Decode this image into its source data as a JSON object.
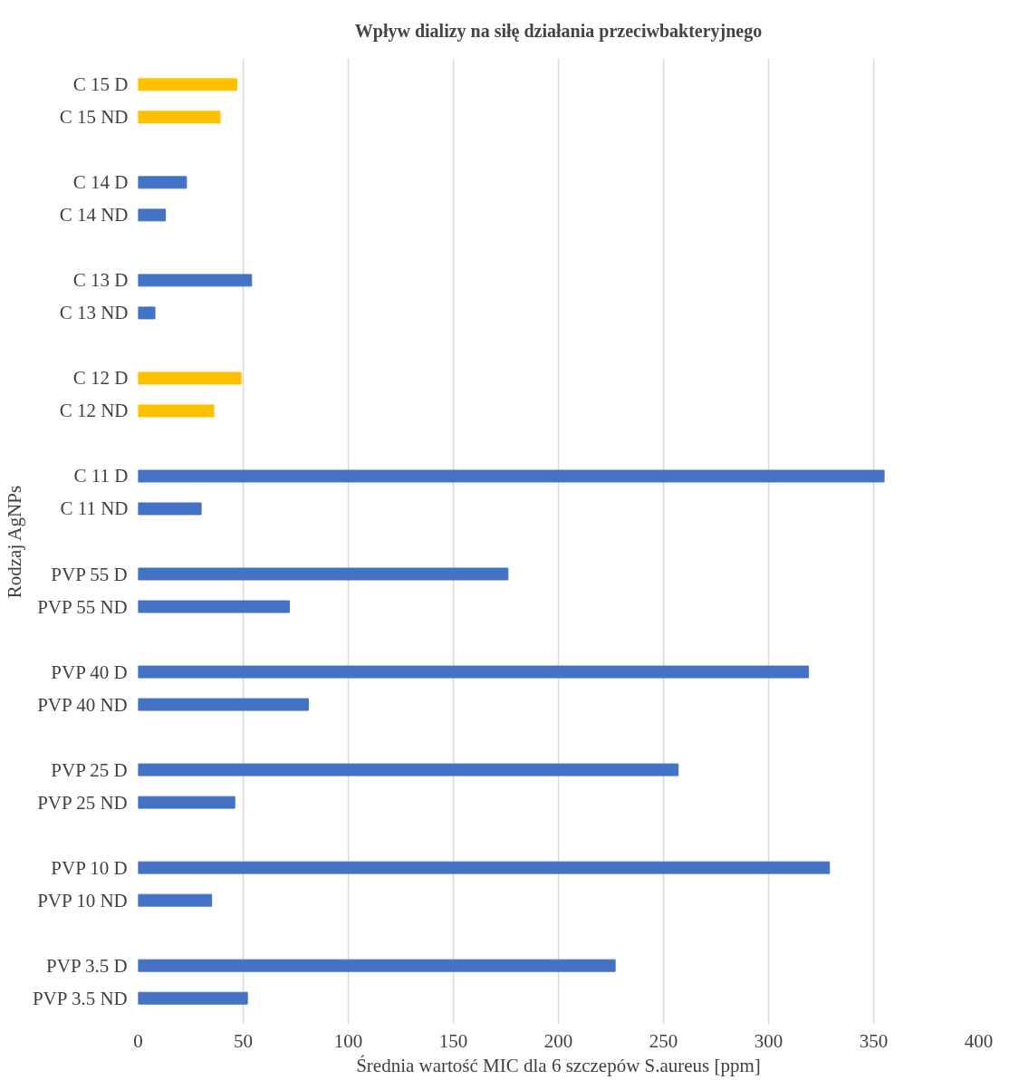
{
  "chart_data": {
    "type": "bar",
    "orientation": "horizontal",
    "title": "Wpływ dializy na siłę działania przeciwbakteryjnego",
    "xlabel": "Średnia wartość MIC dla 6 szczepów S.aureus [ppm]",
    "ylabel": "Rodzaj AgNPs",
    "categories": [
      "C 15 D",
      "C 15 ND",
      null,
      "C 14 D",
      "C 14 ND",
      null,
      "C 13 D",
      "C 13 ND",
      null,
      "C 12 D",
      "C 12 ND",
      null,
      "C 11 D",
      "C 11 ND",
      null,
      "PVP 55 D",
      "PVP 55 ND",
      null,
      "PVP 40 D",
      "PVP 40 ND",
      null,
      "PVP 25 D",
      "PVP 25 ND",
      null,
      "PVP 10 D",
      "PVP 10 ND",
      null,
      "PVP 3.5 D",
      "PVP 3.5 ND"
    ],
    "values": [
      47,
      39,
      null,
      23,
      13,
      null,
      54,
      8,
      null,
      49,
      36,
      null,
      355,
      30,
      null,
      176,
      72,
      null,
      319,
      81,
      null,
      257,
      46,
      null,
      329,
      35,
      null,
      227,
      52
    ],
    "colors": [
      "#ffc000",
      "#ffc000",
      null,
      "#4472c4",
      "#4472c4",
      null,
      "#4472c4",
      "#4472c4",
      null,
      "#ffc000",
      "#ffc000",
      null,
      "#4472c4",
      "#4472c4",
      null,
      "#4472c4",
      "#4472c4",
      null,
      "#4472c4",
      "#4472c4",
      null,
      "#4472c4",
      "#4472c4",
      null,
      "#4472c4",
      "#4472c4",
      null,
      "#4472c4",
      "#4472c4"
    ],
    "xlim": [
      0,
      400
    ],
    "xticks": [
      0,
      50,
      100,
      150,
      200,
      250,
      300,
      350,
      400
    ],
    "grid": "x"
  }
}
